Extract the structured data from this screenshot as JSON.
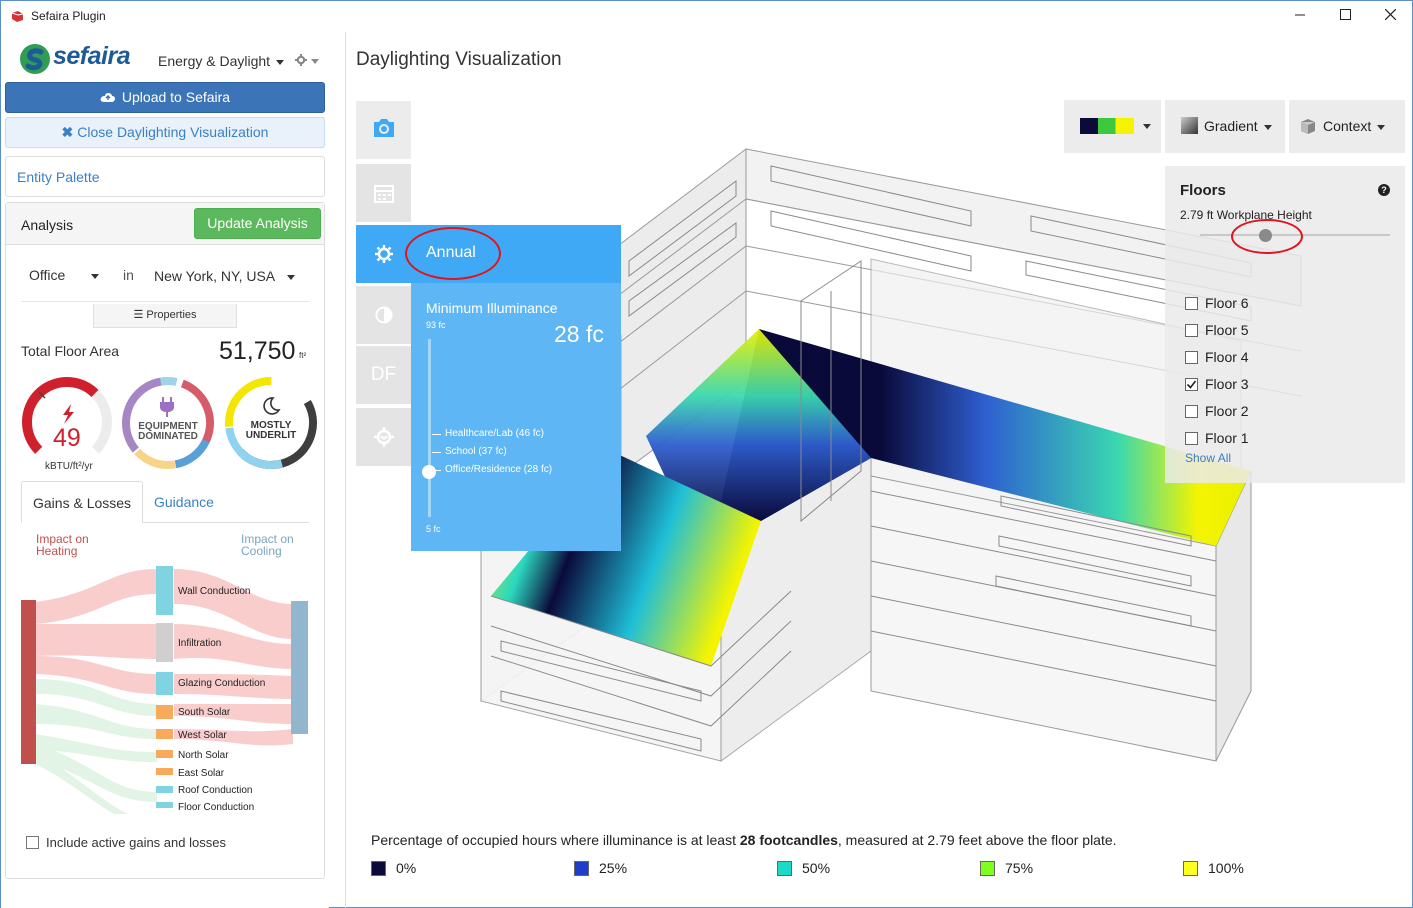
{
  "window": {
    "title": "Sefaira Plugin",
    "minimize": "—",
    "maximize": "☐",
    "close": "✕"
  },
  "header": {
    "logo_text": "sefaira",
    "mode": "Energy & Daylight"
  },
  "buttons": {
    "upload": "Upload to Sefaira",
    "close_vis": "Close Daylighting Visualization",
    "entity_palette": "Entity Palette",
    "update": "Update Analysis",
    "properties": "Properties"
  },
  "analysis": {
    "label": "Analysis",
    "building_type": "Office",
    "in": "in",
    "location": "New York, NY, USA",
    "total_floor_area_label": "Total Floor Area",
    "total_floor_area": "51,750",
    "area_unit": "ft²",
    "eui": {
      "value": "49",
      "unit": "kBTU/ft²/yr"
    },
    "load_gauge": {
      "line1": "EQUIPMENT",
      "line2": "DOMINATED"
    },
    "daylight_gauge": {
      "line1": "MOSTLY",
      "line2": "UNDERLIT"
    }
  },
  "tabs": [
    {
      "label": "Gains & Losses"
    },
    {
      "label": "Guidance"
    }
  ],
  "impact": {
    "heating_1": "Impact on",
    "heating_2": "Heating",
    "cooling_1": "Impact on",
    "cooling_2": "Cooling"
  },
  "sankey_items": [
    {
      "label": "Wall Conduction"
    },
    {
      "label": "Infiltration"
    },
    {
      "label": "Glazing Conduction"
    },
    {
      "label": "South Solar"
    },
    {
      "label": "West Solar"
    },
    {
      "label": "North Solar"
    },
    {
      "label": "East Solar"
    },
    {
      "label": "Roof Conduction"
    },
    {
      "label": "Floor Conduction"
    }
  ],
  "include_active": {
    "label": "Include active gains and losses",
    "checked": false
  },
  "visualization": {
    "title": "Daylighting Visualization",
    "side_buttons": [
      "camera-icon",
      "calendar-icon",
      "gear-icon",
      "contrast-icon",
      "DF",
      "settings-icon"
    ],
    "df_label": "DF",
    "metric": "Annual",
    "min_illuminance": {
      "title": "Minimum Illuminance",
      "max_label": "93 fc",
      "min_label": "5 fc",
      "value": "28 fc",
      "presets": [
        {
          "label": "Healthcare/Lab (46 fc)"
        },
        {
          "label": "School (37 fc)"
        },
        {
          "label": "Office/Residence (28 fc)"
        }
      ]
    },
    "toolbar": {
      "gradient": "Gradient",
      "context": "Context"
    },
    "floors": {
      "title": "Floors",
      "help": "?",
      "workplane": "2.79 ft Workplane Height",
      "items": [
        {
          "label": "Floor 6",
          "checked": false
        },
        {
          "label": "Floor 5",
          "checked": false
        },
        {
          "label": "Floor 4",
          "checked": false
        },
        {
          "label": "Floor 3",
          "checked": true
        },
        {
          "label": "Floor 2",
          "checked": false
        },
        {
          "label": "Floor 1",
          "checked": false
        }
      ],
      "show_all": "Show All"
    },
    "caption_pre": "Percentage of occupied hours where illuminance is at least ",
    "caption_bold": "28 footcandles",
    "caption_post": ", measured at 2.79 feet above the floor plate.",
    "legend": [
      {
        "label": "0%",
        "color": "#0b0b3a"
      },
      {
        "label": "25%",
        "color": "#1f3fc8"
      },
      {
        "label": "50%",
        "color": "#1ed8c8"
      },
      {
        "label": "75%",
        "color": "#7fff1e"
      },
      {
        "label": "100%",
        "color": "#ffff1e"
      }
    ]
  }
}
